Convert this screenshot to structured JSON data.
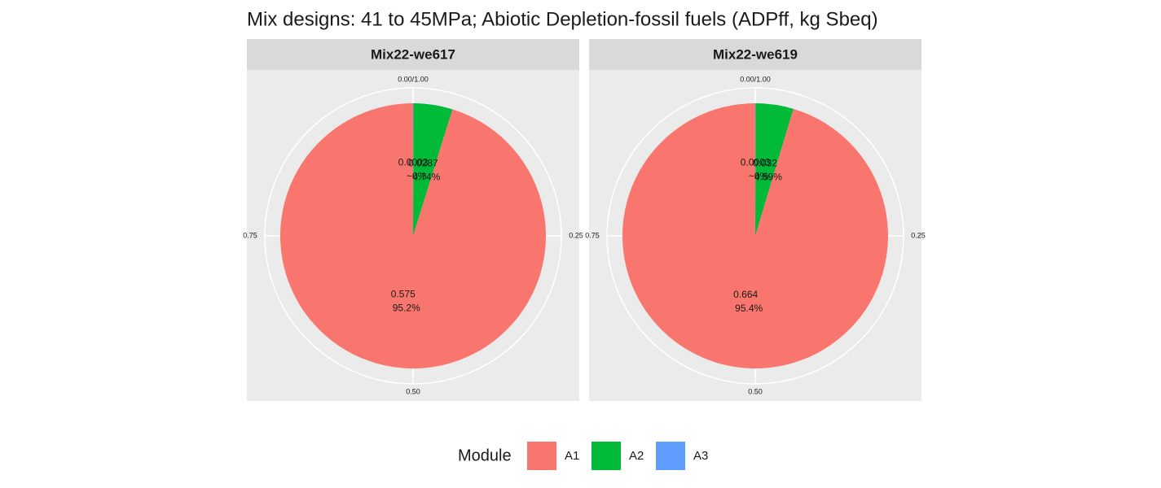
{
  "chart_data": {
    "type": "pie",
    "title": "Mix designs: 41 to 45MPa; Abiotic Depletion-fossil fuels (ADPff, kg Sbeq)",
    "legend_title": "Module",
    "categories": [
      "A1",
      "A2",
      "A3"
    ],
    "colors": [
      "#f8766d",
      "#00ba38",
      "#619cff"
    ],
    "ticks": [
      {
        "value": 0,
        "label": "0.00/1.00"
      },
      0.25,
      {
        "value": 0.5,
        "label": "0.50"
      },
      0.75
    ],
    "facets": [
      {
        "name": "Mix22-we617",
        "values": [
          0.575,
          0.0287,
          0.0003
        ],
        "percent_labels": [
          "95.2%",
          "4.74%",
          "~0%"
        ]
      },
      {
        "name": "Mix22-we619",
        "values": [
          0.664,
          0.032,
          0.0003
        ],
        "percent_labels": [
          "95.4%",
          "4.59%",
          "~0%"
        ]
      }
    ]
  }
}
